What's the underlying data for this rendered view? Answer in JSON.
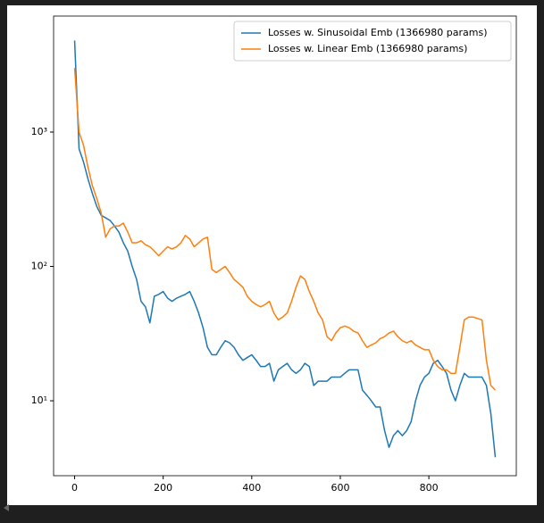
{
  "chart_data": {
    "type": "line",
    "x": [
      0,
      10,
      20,
      30,
      40,
      50,
      60,
      70,
      80,
      90,
      100,
      110,
      120,
      130,
      140,
      150,
      160,
      170,
      180,
      190,
      200,
      210,
      220,
      230,
      240,
      250,
      260,
      270,
      280,
      290,
      300,
      310,
      320,
      330,
      340,
      350,
      360,
      370,
      380,
      390,
      400,
      410,
      420,
      430,
      440,
      450,
      460,
      470,
      480,
      490,
      500,
      510,
      520,
      530,
      540,
      550,
      560,
      570,
      580,
      590,
      600,
      610,
      620,
      630,
      640,
      650,
      660,
      670,
      680,
      690,
      700,
      710,
      720,
      730,
      740,
      750,
      760,
      770,
      780,
      790,
      800,
      810,
      820,
      830,
      840,
      850,
      860,
      870,
      880,
      890,
      900,
      910,
      920,
      930,
      940,
      950
    ],
    "series": [
      {
        "name": "Losses w. Sinusoidal Emb (1366980 params)",
        "color": "#1f77b4",
        "values": [
          4800,
          750,
          600,
          450,
          350,
          280,
          240,
          230,
          220,
          200,
          180,
          150,
          130,
          100,
          80,
          55,
          50,
          38,
          60,
          62,
          65,
          58,
          55,
          58,
          60,
          62,
          65,
          55,
          45,
          35,
          25,
          22,
          22,
          25,
          28,
          27,
          25,
          22,
          20,
          21,
          22,
          20,
          18,
          18,
          19,
          14,
          17,
          18,
          19,
          17,
          16,
          17,
          19,
          18,
          13,
          14,
          14,
          14,
          15,
          15,
          15,
          16,
          17,
          17,
          17,
          12,
          11,
          10,
          9,
          9,
          6,
          4.5,
          5.5,
          6,
          5.5,
          6,
          7,
          10,
          13,
          15,
          16,
          19,
          20,
          18,
          16,
          12,
          10,
          13,
          16,
          15,
          15,
          15,
          15,
          13,
          8,
          3.8
        ]
      },
      {
        "name": "Losses w. Linear Emb (1366980 params)",
        "color": "#ff7f0e",
        "values": [
          3000,
          1000,
          800,
          550,
          400,
          320,
          250,
          165,
          190,
          200,
          200,
          210,
          180,
          150,
          150,
          155,
          145,
          140,
          130,
          120,
          130,
          140,
          135,
          140,
          150,
          170,
          160,
          140,
          150,
          160,
          165,
          95,
          90,
          95,
          100,
          90,
          80,
          75,
          70,
          60,
          55,
          52,
          50,
          52,
          55,
          45,
          40,
          42,
          45,
          55,
          70,
          85,
          80,
          65,
          55,
          45,
          40,
          30,
          28,
          32,
          35,
          36,
          35,
          33,
          32,
          28,
          25,
          26,
          27,
          29,
          30,
          32,
          33,
          30,
          28,
          27,
          28,
          26,
          25,
          24,
          24,
          20,
          18,
          17,
          17,
          16,
          16,
          25,
          40,
          42,
          42,
          41,
          40,
          20,
          13,
          12
        ]
      }
    ],
    "xlim": [
      -47.5,
      997.5
    ],
    "xticks": [
      0,
      200,
      400,
      600,
      800
    ],
    "ylim": [
      2.77,
      7300
    ],
    "yticks": [
      {
        "value": 10,
        "label": "10¹"
      },
      {
        "value": 100,
        "label": "10²"
      },
      {
        "value": 1000,
        "label": "10³"
      }
    ],
    "log_y": true,
    "legend": "upper right"
  }
}
